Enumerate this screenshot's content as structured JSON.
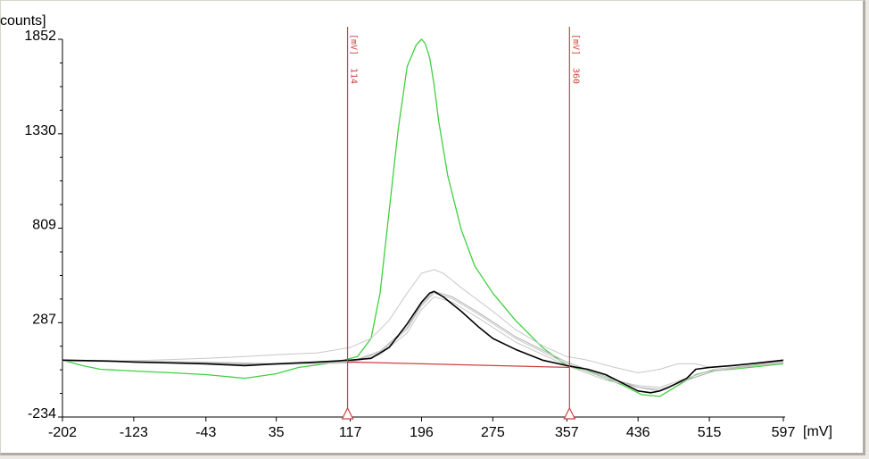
{
  "chart_data": {
    "type": "line",
    "y_unit_label": "counts]",
    "x_unit_label": "[mV]",
    "x_ticks": [
      "-202",
      "-123",
      "-43",
      "35",
      "117",
      "196",
      "275",
      "357",
      "436",
      "515",
      "597"
    ],
    "y_ticks": [
      "-234",
      "287",
      "809",
      "1330",
      "1852"
    ],
    "xlim": [
      -202,
      597
    ],
    "ylim": [
      -234,
      1852
    ],
    "grid": false,
    "legend": "none",
    "markers": [
      {
        "x": 114,
        "label": "114",
        "unit": "[mV]",
        "color": "#d04040"
      },
      {
        "x": 360,
        "label": "360",
        "unit": "[mV]",
        "color": "#d04040"
      }
    ],
    "baseline": {
      "x": [
        114,
        360
      ],
      "y": [
        70,
        40
      ],
      "color": "#d04040"
    },
    "series": [
      {
        "color": "#40d040",
        "width": 1.3,
        "x": [
          -202,
          -180,
          -160,
          -123,
          -80,
          -43,
          0,
          35,
          60,
          90,
          110,
          125,
          140,
          150,
          160,
          170,
          180,
          190,
          196,
          200,
          205,
          210,
          215,
          225,
          240,
          255,
          275,
          300,
          330,
          357,
          380,
          400,
          420,
          440,
          460,
          480,
          500,
          515,
          540,
          560,
          597
        ],
        "y": [
          80,
          50,
          30,
          20,
          10,
          0,
          -20,
          5,
          40,
          60,
          80,
          100,
          200,
          450,
          900,
          1350,
          1700,
          1820,
          1852,
          1830,
          1750,
          1600,
          1400,
          1100,
          800,
          600,
          450,
          300,
          150,
          50,
          20,
          -20,
          -60,
          -110,
          -120,
          -60,
          0,
          20,
          30,
          40,
          60
        ]
      },
      {
        "color": "#c8c8c8",
        "width": 1,
        "x": [
          -202,
          -150,
          -100,
          -43,
          0,
          35,
          80,
          117,
          140,
          160,
          180,
          196,
          210,
          220,
          240,
          275,
          300,
          330,
          357,
          380,
          410,
          436,
          460,
          480,
          500,
          515,
          540,
          560,
          597
        ],
        "y": [
          80,
          75,
          80,
          90,
          100,
          110,
          120,
          150,
          200,
          300,
          450,
          560,
          580,
          560,
          480,
          350,
          250,
          160,
          100,
          80,
          40,
          10,
          30,
          60,
          60,
          40,
          50,
          60,
          70
        ]
      },
      {
        "color": "#c8c8c8",
        "width": 1,
        "x": [
          -202,
          -123,
          -43,
          35,
          117,
          150,
          180,
          196,
          210,
          230,
          260,
          300,
          357,
          400,
          436,
          460,
          490,
          520,
          560,
          597
        ],
        "y": [
          80,
          75,
          70,
          60,
          70,
          120,
          250,
          380,
          450,
          420,
          330,
          200,
          60,
          -20,
          -60,
          -70,
          -20,
          30,
          50,
          70
        ]
      },
      {
        "color": "#c8c8c8",
        "width": 1,
        "x": [
          -202,
          -123,
          -43,
          35,
          117,
          150,
          180,
          196,
          210,
          230,
          260,
          300,
          357,
          400,
          436,
          460,
          490,
          520,
          560,
          597
        ],
        "y": [
          75,
          70,
          60,
          55,
          65,
          110,
          230,
          360,
          430,
          400,
          310,
          180,
          50,
          -30,
          -70,
          -80,
          -30,
          20,
          45,
          65
        ]
      },
      {
        "color": "#b0b0b0",
        "width": 1,
        "x": [
          -202,
          -123,
          -43,
          35,
          117,
          150,
          180,
          196,
          210,
          230,
          260,
          300,
          357,
          400,
          436,
          460,
          490,
          520,
          560,
          597
        ],
        "y": [
          80,
          70,
          65,
          60,
          70,
          130,
          260,
          390,
          460,
          430,
          340,
          210,
          70,
          -10,
          -70,
          -90,
          -30,
          20,
          50,
          75
        ]
      },
      {
        "color": "#000000",
        "width": 1.6,
        "x": [
          -202,
          -150,
          -123,
          -80,
          -43,
          0,
          35,
          80,
          117,
          140,
          160,
          180,
          196,
          205,
          210,
          220,
          240,
          260,
          275,
          300,
          330,
          357,
          380,
          400,
          420,
          436,
          450,
          460,
          470,
          490,
          500,
          515,
          540,
          560,
          597
        ],
        "y": [
          80,
          75,
          70,
          65,
          60,
          50,
          60,
          70,
          80,
          90,
          150,
          280,
          400,
          450,
          460,
          430,
          350,
          260,
          200,
          140,
          80,
          50,
          30,
          0,
          -50,
          -90,
          -100,
          -90,
          -70,
          -20,
          30,
          40,
          50,
          60,
          80
        ]
      }
    ]
  }
}
